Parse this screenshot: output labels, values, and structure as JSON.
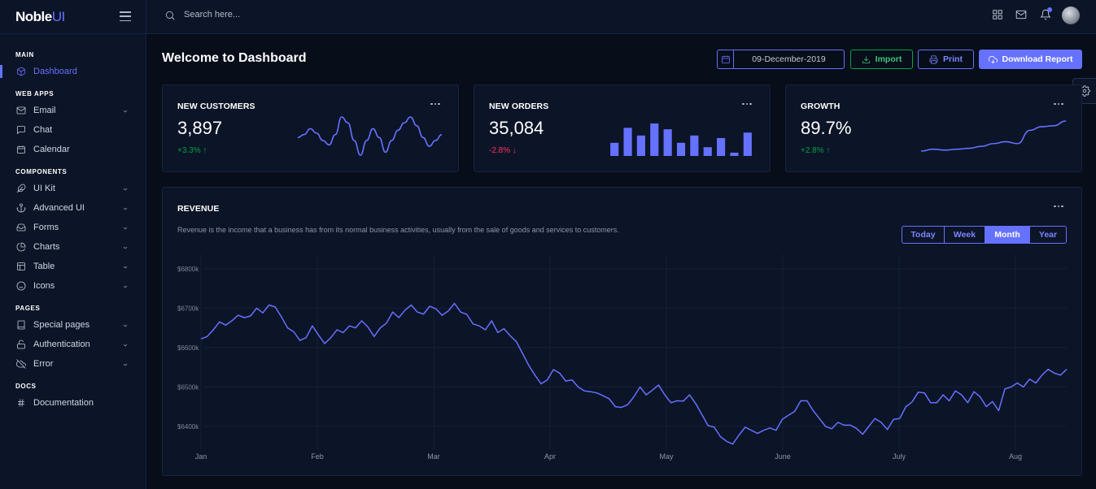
{
  "brand": {
    "name_bold": "Noble",
    "name_light": "UI"
  },
  "sidebar": {
    "sections": [
      {
        "category": "MAIN",
        "items": [
          {
            "label": "Dashboard",
            "icon": "box-icon",
            "active": true,
            "chevron": false
          }
        ]
      },
      {
        "category": "WEB APPS",
        "items": [
          {
            "label": "Email",
            "icon": "mail-icon",
            "chevron": true
          },
          {
            "label": "Chat",
            "icon": "message-square-icon",
            "chevron": false
          },
          {
            "label": "Calendar",
            "icon": "calendar-icon",
            "chevron": false
          }
        ]
      },
      {
        "category": "COMPONENTS",
        "items": [
          {
            "label": "UI Kit",
            "icon": "feather-icon",
            "chevron": true
          },
          {
            "label": "Advanced UI",
            "icon": "anchor-icon",
            "chevron": true
          },
          {
            "label": "Forms",
            "icon": "inbox-icon",
            "chevron": true
          },
          {
            "label": "Charts",
            "icon": "pie-chart-icon",
            "chevron": true
          },
          {
            "label": "Table",
            "icon": "layout-icon",
            "chevron": true
          },
          {
            "label": "Icons",
            "icon": "smile-icon",
            "chevron": true
          }
        ]
      },
      {
        "category": "PAGES",
        "items": [
          {
            "label": "Special pages",
            "icon": "book-icon",
            "chevron": true
          },
          {
            "label": "Authentication",
            "icon": "unlock-icon",
            "chevron": true
          },
          {
            "label": "Error",
            "icon": "cloud-off-icon",
            "chevron": true
          }
        ]
      },
      {
        "category": "DOCS",
        "items": [
          {
            "label": "Documentation",
            "icon": "hash-icon",
            "chevron": false
          }
        ]
      }
    ]
  },
  "topbar": {
    "search_placeholder": "Search here..."
  },
  "page": {
    "title": "Welcome to Dashboard",
    "date_value": "09-December-2019",
    "import_label": "Import",
    "print_label": "Print",
    "download_label": "Download Report"
  },
  "cards": {
    "customers": {
      "title": "NEW CUSTOMERS",
      "value": "3,897",
      "change": "+3.3%",
      "arrow": "↑"
    },
    "orders": {
      "title": "NEW ORDERS",
      "value": "35,084",
      "change": "-2.8%",
      "arrow": "↓"
    },
    "growth": {
      "title": "GROWTH",
      "value": "89.7%",
      "change": "+2.8%",
      "arrow": "↑"
    }
  },
  "revenue": {
    "title": "REVENUE",
    "description": "Revenue is the income that a business has from its normal business activities, usually from the sale of goods and services to customers.",
    "ranges": [
      {
        "label": "Today",
        "active": false
      },
      {
        "label": "Week",
        "active": false
      },
      {
        "label": "Month",
        "active": true
      },
      {
        "label": "Year",
        "active": false
      }
    ]
  },
  "colors": {
    "accent": "#6571ff",
    "success": "#05a34a",
    "danger": "#ff3366"
  },
  "chart_data": [
    {
      "type": "line",
      "name": "new-customers-sparkline",
      "values": [
        50,
        52,
        56,
        53,
        48,
        45,
        52,
        64,
        60,
        48,
        38,
        48,
        56,
        50,
        40,
        48,
        55,
        60,
        64,
        58,
        50,
        44,
        48,
        52
      ]
    },
    {
      "type": "bar",
      "name": "new-orders-sparkline",
      "values": [
        36,
        77,
        56,
        89,
        73,
        36,
        56,
        24,
        49,
        9,
        64
      ],
      "ylim": [
        0,
        100
      ]
    },
    {
      "type": "line",
      "name": "growth-sparkline",
      "values": [
        40,
        42,
        41,
        42,
        43,
        45,
        48,
        50,
        48,
        62,
        66,
        67,
        72
      ]
    },
    {
      "type": "line",
      "title": "REVENUE",
      "x_tick_labels": [
        "Jan",
        "Feb",
        "Mar",
        "Apr",
        "May",
        "June",
        "July",
        "Aug"
      ],
      "y_tick_labels": [
        "$6800k",
        "$6700k",
        "$6600k",
        "$6500k",
        "$6400k"
      ],
      "y_ticks": [
        6800,
        6700,
        6600,
        6500,
        6400
      ],
      "ylim": [
        6340,
        6810
      ],
      "grid": true,
      "values": [
        6622,
        6628,
        6645,
        6665,
        6657,
        6668,
        6682,
        6676,
        6680,
        6700,
        6688,
        6708,
        6703,
        6678,
        6650,
        6640,
        6618,
        6625,
        6655,
        6632,
        6610,
        6625,
        6645,
        6638,
        6655,
        6650,
        6668,
        6652,
        6628,
        6650,
        6662,
        6690,
        6676,
        6695,
        6708,
        6690,
        6685,
        6705,
        6698,
        6682,
        6693,
        6712,
        6690,
        6684,
        6660,
        6655,
        6645,
        6668,
        6638,
        6648,
        6630,
        6615,
        6585,
        6555,
        6530,
        6508,
        6518,
        6544,
        6535,
        6515,
        6518,
        6500,
        6490,
        6488,
        6485,
        6478,
        6470,
        6450,
        6448,
        6455,
        6475,
        6500,
        6480,
        6492,
        6505,
        6480,
        6460,
        6465,
        6464,
        6480,
        6458,
        6430,
        6402,
        6398,
        6374,
        6362,
        6355,
        6378,
        6398,
        6390,
        6382,
        6390,
        6396,
        6390,
        6418,
        6428,
        6438,
        6465,
        6465,
        6440,
        6420,
        6400,
        6394,
        6410,
        6403,
        6403,
        6395,
        6380,
        6400,
        6420,
        6410,
        6392,
        6418,
        6420,
        6450,
        6462,
        6487,
        6485,
        6460,
        6460,
        6480,
        6465,
        6490,
        6480,
        6460,
        6488,
        6475,
        6450,
        6463,
        6440,
        6495,
        6500,
        6510,
        6500,
        6520,
        6510,
        6530,
        6545,
        6535,
        6530,
        6545
      ]
    }
  ]
}
